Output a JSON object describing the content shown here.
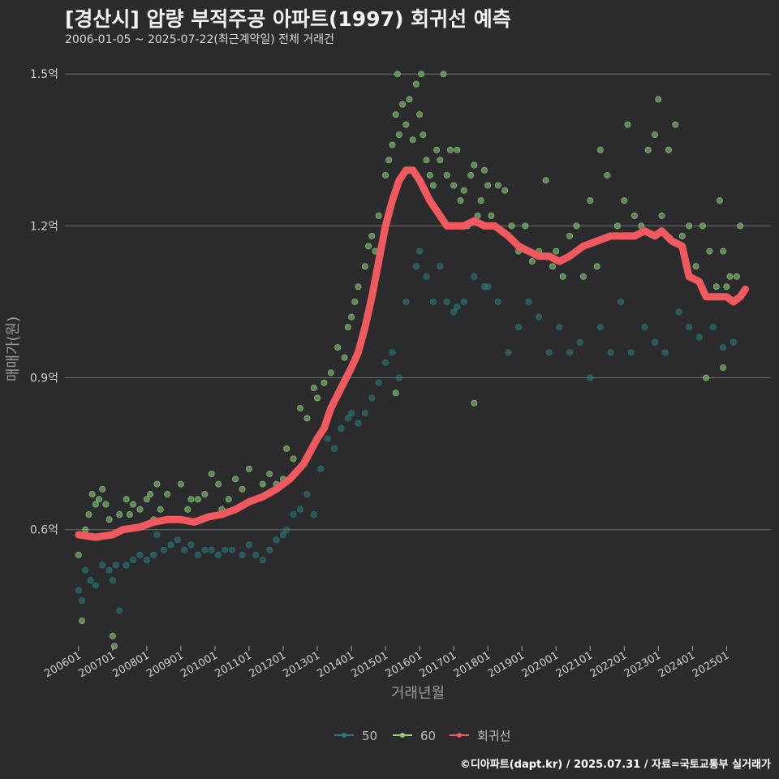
{
  "header": {
    "title": "[경산시] 압량 부적주공 아파트(1997) 회귀선 예측",
    "subtitle": "2006-01-05 ~ 2025-07-22(최근계약일) 전체 거래건"
  },
  "footer": {
    "credit": "©디아파트(dapt.kr) / 2025.07.31 / 자료=국토교통부 실거래가"
  },
  "colors": {
    "background": "#2b2b2e",
    "series_50": "#2a7d80",
    "series_60": "#8ed17a",
    "regression": "#f05a5f",
    "grid": "#6e6e6e"
  },
  "chart_data": {
    "type": "scatter",
    "title": "[경산시] 압량 부적주공 아파트(1997) 회귀선 예측",
    "xlabel": "거래년월",
    "ylabel": "매매가(원)",
    "ylim": [
      0.38,
      1.55
    ],
    "xlim": [
      2005.6,
      2026.3
    ],
    "y_ticks": [
      0.6,
      0.9,
      1.2,
      1.5
    ],
    "y_tick_labels": [
      "0.6억",
      "0.9억",
      "1.2억",
      "1.5억"
    ],
    "x_ticks": [
      2006,
      2007,
      2008,
      2009,
      2010,
      2011,
      2012,
      2013,
      2014,
      2015,
      2016,
      2017,
      2018,
      2019,
      2020,
      2021,
      2022,
      2023,
      2024,
      2025
    ],
    "x_tick_labels": [
      "200601",
      "200701",
      "200801",
      "200901",
      "201001",
      "201101",
      "201201",
      "201301",
      "201401",
      "201501",
      "201601",
      "201701",
      "201801",
      "201901",
      "202001",
      "202101",
      "202201",
      "202301",
      "202401",
      "202501"
    ],
    "legend": [
      "50",
      "60",
      "회귀선"
    ],
    "series": [
      {
        "name": "50",
        "points": [
          [
            2006.0,
            0.48
          ],
          [
            2006.1,
            0.46
          ],
          [
            2006.2,
            0.52
          ],
          [
            2006.35,
            0.5
          ],
          [
            2006.5,
            0.49
          ],
          [
            2006.7,
            0.53
          ],
          [
            2006.9,
            0.52
          ],
          [
            2007.0,
            0.5
          ],
          [
            2007.1,
            0.53
          ],
          [
            2007.2,
            0.44
          ],
          [
            2007.4,
            0.53
          ],
          [
            2007.6,
            0.54
          ],
          [
            2007.8,
            0.55
          ],
          [
            2008.0,
            0.54
          ],
          [
            2008.2,
            0.55
          ],
          [
            2008.3,
            0.59
          ],
          [
            2008.5,
            0.56
          ],
          [
            2008.7,
            0.57
          ],
          [
            2008.9,
            0.58
          ],
          [
            2009.1,
            0.56
          ],
          [
            2009.3,
            0.57
          ],
          [
            2009.5,
            0.55
          ],
          [
            2009.7,
            0.56
          ],
          [
            2009.9,
            0.56
          ],
          [
            2010.1,
            0.55
          ],
          [
            2010.3,
            0.56
          ],
          [
            2010.5,
            0.56
          ],
          [
            2010.8,
            0.55
          ],
          [
            2011.0,
            0.57
          ],
          [
            2011.2,
            0.55
          ],
          [
            2011.4,
            0.54
          ],
          [
            2011.6,
            0.56
          ],
          [
            2011.8,
            0.58
          ],
          [
            2012.0,
            0.59
          ],
          [
            2012.1,
            0.6
          ],
          [
            2012.3,
            0.63
          ],
          [
            2012.5,
            0.64
          ],
          [
            2012.7,
            0.67
          ],
          [
            2012.9,
            0.63
          ],
          [
            2013.1,
            0.72
          ],
          [
            2013.3,
            0.78
          ],
          [
            2013.5,
            0.76
          ],
          [
            2013.7,
            0.8
          ],
          [
            2013.9,
            0.82
          ],
          [
            2014.0,
            0.83
          ],
          [
            2014.2,
            0.81
          ],
          [
            2014.4,
            0.83
          ],
          [
            2014.6,
            0.86
          ],
          [
            2014.8,
            0.89
          ],
          [
            2015.0,
            0.93
          ],
          [
            2015.2,
            0.95
          ],
          [
            2015.4,
            0.9
          ],
          [
            2015.6,
            1.05
          ],
          [
            2015.9,
            1.12
          ],
          [
            2016.0,
            1.15
          ],
          [
            2016.2,
            1.1
          ],
          [
            2016.4,
            1.05
          ],
          [
            2016.6,
            1.12
          ],
          [
            2016.8,
            1.05
          ],
          [
            2017.0,
            1.03
          ],
          [
            2017.1,
            1.04
          ],
          [
            2017.3,
            1.05
          ],
          [
            2017.6,
            1.1
          ],
          [
            2017.9,
            1.08
          ],
          [
            2018.0,
            1.08
          ],
          [
            2018.3,
            1.05
          ],
          [
            2018.6,
            0.95
          ],
          [
            2018.9,
            1.0
          ],
          [
            2019.2,
            1.05
          ],
          [
            2019.5,
            1.02
          ],
          [
            2019.8,
            0.95
          ],
          [
            2020.1,
            1.0
          ],
          [
            2020.4,
            0.95
          ],
          [
            2020.7,
            0.97
          ],
          [
            2021.0,
            0.9
          ],
          [
            2021.3,
            1.0
          ],
          [
            2021.6,
            0.95
          ],
          [
            2021.9,
            1.05
          ],
          [
            2022.2,
            0.95
          ],
          [
            2022.6,
            1.0
          ],
          [
            2022.9,
            0.97
          ],
          [
            2023.2,
            0.95
          ],
          [
            2023.6,
            1.03
          ],
          [
            2023.9,
            1.0
          ],
          [
            2024.2,
            0.98
          ],
          [
            2024.6,
            1.0
          ],
          [
            2024.9,
            0.96
          ],
          [
            2025.2,
            0.97
          ]
        ]
      },
      {
        "name": "60",
        "points": [
          [
            2006.0,
            0.55
          ],
          [
            2006.1,
            0.42
          ],
          [
            2006.2,
            0.6
          ],
          [
            2006.3,
            0.63
          ],
          [
            2006.4,
            0.67
          ],
          [
            2006.5,
            0.65
          ],
          [
            2006.6,
            0.66
          ],
          [
            2006.7,
            0.68
          ],
          [
            2006.8,
            0.65
          ],
          [
            2006.9,
            0.62
          ],
          [
            2007.0,
            0.39
          ],
          [
            2007.05,
            0.37
          ],
          [
            2007.2,
            0.63
          ],
          [
            2007.4,
            0.66
          ],
          [
            2007.5,
            0.63
          ],
          [
            2007.6,
            0.65
          ],
          [
            2007.8,
            0.64
          ],
          [
            2008.0,
            0.66
          ],
          [
            2008.1,
            0.67
          ],
          [
            2008.2,
            0.62
          ],
          [
            2008.3,
            0.69
          ],
          [
            2008.4,
            0.64
          ],
          [
            2008.6,
            0.67
          ],
          [
            2008.8,
            0.62
          ],
          [
            2009.0,
            0.69
          ],
          [
            2009.2,
            0.64
          ],
          [
            2009.3,
            0.66
          ],
          [
            2009.5,
            0.66
          ],
          [
            2009.7,
            0.67
          ],
          [
            2009.9,
            0.71
          ],
          [
            2010.1,
            0.69
          ],
          [
            2010.2,
            0.64
          ],
          [
            2010.4,
            0.66
          ],
          [
            2010.6,
            0.7
          ],
          [
            2010.8,
            0.68
          ],
          [
            2011.0,
            0.72
          ],
          [
            2011.2,
            0.66
          ],
          [
            2011.4,
            0.69
          ],
          [
            2011.6,
            0.71
          ],
          [
            2011.8,
            0.69
          ],
          [
            2012.0,
            0.7
          ],
          [
            2012.1,
            0.76
          ],
          [
            2012.3,
            0.74
          ],
          [
            2012.5,
            0.84
          ],
          [
            2012.7,
            0.82
          ],
          [
            2012.9,
            0.88
          ],
          [
            2013.0,
            0.86
          ],
          [
            2013.2,
            0.89
          ],
          [
            2013.4,
            0.91
          ],
          [
            2013.6,
            0.96
          ],
          [
            2013.8,
            0.94
          ],
          [
            2013.9,
            1.0
          ],
          [
            2014.0,
            1.02
          ],
          [
            2014.1,
            1.05
          ],
          [
            2014.2,
            1.08
          ],
          [
            2014.4,
            1.12
          ],
          [
            2014.5,
            1.16
          ],
          [
            2014.6,
            1.18
          ],
          [
            2014.7,
            1.15
          ],
          [
            2014.8,
            1.22
          ],
          [
            2015.0,
            1.3
          ],
          [
            2015.1,
            1.33
          ],
          [
            2015.2,
            1.36
          ],
          [
            2015.3,
            1.42
          ],
          [
            2015.35,
            1.5
          ],
          [
            2015.4,
            1.38
          ],
          [
            2015.5,
            1.44
          ],
          [
            2015.6,
            1.4
          ],
          [
            2015.7,
            1.45
          ],
          [
            2015.8,
            1.37
          ],
          [
            2015.9,
            1.48
          ],
          [
            2016.0,
            1.42
          ],
          [
            2016.05,
            1.5
          ],
          [
            2016.1,
            1.38
          ],
          [
            2016.2,
            1.33
          ],
          [
            2016.3,
            1.3
          ],
          [
            2016.4,
            1.28
          ],
          [
            2016.5,
            1.35
          ],
          [
            2016.6,
            1.33
          ],
          [
            2016.7,
            1.5
          ],
          [
            2016.8,
            1.3
          ],
          [
            2016.9,
            1.35
          ],
          [
            2017.0,
            1.28
          ],
          [
            2017.1,
            1.35
          ],
          [
            2017.2,
            1.25
          ],
          [
            2017.3,
            1.27
          ],
          [
            2017.4,
            1.2
          ],
          [
            2017.5,
            1.3
          ],
          [
            2017.6,
            1.32
          ],
          [
            2017.7,
            1.22
          ],
          [
            2017.8,
            1.25
          ],
          [
            2017.9,
            1.31
          ],
          [
            2018.0,
            1.28
          ],
          [
            2018.1,
            1.22
          ],
          [
            2018.3,
            1.28
          ],
          [
            2018.5,
            1.27
          ],
          [
            2018.7,
            1.2
          ],
          [
            2018.9,
            1.15
          ],
          [
            2019.1,
            1.2
          ],
          [
            2019.3,
            1.13
          ],
          [
            2019.5,
            1.15
          ],
          [
            2019.7,
            1.29
          ],
          [
            2019.9,
            1.12
          ],
          [
            2020.0,
            1.15
          ],
          [
            2020.2,
            1.1
          ],
          [
            2020.4,
            1.18
          ],
          [
            2020.6,
            1.2
          ],
          [
            2020.8,
            1.1
          ],
          [
            2021.0,
            1.25
          ],
          [
            2021.2,
            1.12
          ],
          [
            2021.3,
            1.35
          ],
          [
            2021.5,
            1.3
          ],
          [
            2021.6,
            1.18
          ],
          [
            2021.8,
            1.2
          ],
          [
            2022.0,
            1.25
          ],
          [
            2022.1,
            1.4
          ],
          [
            2022.3,
            1.22
          ],
          [
            2022.5,
            1.2
          ],
          [
            2022.7,
            1.35
          ],
          [
            2022.9,
            1.38
          ],
          [
            2023.0,
            1.45
          ],
          [
            2023.1,
            1.22
          ],
          [
            2023.3,
            1.35
          ],
          [
            2023.5,
            1.4
          ],
          [
            2023.7,
            1.18
          ],
          [
            2023.9,
            1.2
          ],
          [
            2024.1,
            1.12
          ],
          [
            2024.3,
            1.2
          ],
          [
            2024.5,
            1.15
          ],
          [
            2024.7,
            1.08
          ],
          [
            2024.8,
            1.25
          ],
          [
            2024.9,
            1.15
          ],
          [
            2025.0,
            1.08
          ],
          [
            2025.1,
            1.1
          ],
          [
            2025.3,
            1.1
          ],
          [
            2025.4,
            1.2
          ],
          [
            2024.4,
            0.9
          ],
          [
            2024.9,
            0.92
          ],
          [
            2017.6,
            0.85
          ],
          [
            2015.3,
            0.87
          ]
        ]
      }
    ],
    "regression": {
      "name": "회귀선",
      "points": [
        [
          2006.0,
          0.59
        ],
        [
          2006.5,
          0.585
        ],
        [
          2007.0,
          0.59
        ],
        [
          2007.3,
          0.6
        ],
        [
          2007.8,
          0.605
        ],
        [
          2008.2,
          0.615
        ],
        [
          2008.6,
          0.62
        ],
        [
          2009.0,
          0.62
        ],
        [
          2009.4,
          0.615
        ],
        [
          2009.8,
          0.625
        ],
        [
          2010.2,
          0.63
        ],
        [
          2010.6,
          0.64
        ],
        [
          2011.0,
          0.655
        ],
        [
          2011.4,
          0.665
        ],
        [
          2011.8,
          0.68
        ],
        [
          2012.2,
          0.7
        ],
        [
          2012.6,
          0.73
        ],
        [
          2013.0,
          0.78
        ],
        [
          2013.2,
          0.8
        ],
        [
          2013.4,
          0.84
        ],
        [
          2013.7,
          0.88
        ],
        [
          2014.0,
          0.92
        ],
        [
          2014.2,
          0.95
        ],
        [
          2014.4,
          1.0
        ],
        [
          2014.6,
          1.06
        ],
        [
          2014.8,
          1.13
        ],
        [
          2015.0,
          1.2
        ],
        [
          2015.2,
          1.25
        ],
        [
          2015.4,
          1.29
        ],
        [
          2015.6,
          1.31
        ],
        [
          2015.8,
          1.31
        ],
        [
          2016.0,
          1.29
        ],
        [
          2016.3,
          1.25
        ],
        [
          2016.6,
          1.22
        ],
        [
          2016.8,
          1.2
        ],
        [
          2017.0,
          1.2
        ],
        [
          2017.3,
          1.2
        ],
        [
          2017.6,
          1.21
        ],
        [
          2017.9,
          1.2
        ],
        [
          2018.2,
          1.2
        ],
        [
          2018.6,
          1.18
        ],
        [
          2018.9,
          1.16
        ],
        [
          2019.2,
          1.15
        ],
        [
          2019.5,
          1.14
        ],
        [
          2019.8,
          1.14
        ],
        [
          2020.1,
          1.13
        ],
        [
          2020.4,
          1.14
        ],
        [
          2020.8,
          1.16
        ],
        [
          2021.2,
          1.17
        ],
        [
          2021.6,
          1.18
        ],
        [
          2022.0,
          1.18
        ],
        [
          2022.3,
          1.18
        ],
        [
          2022.6,
          1.19
        ],
        [
          2022.9,
          1.18
        ],
        [
          2023.1,
          1.19
        ],
        [
          2023.4,
          1.17
        ],
        [
          2023.7,
          1.16
        ],
        [
          2023.9,
          1.1
        ],
        [
          2024.2,
          1.09
        ],
        [
          2024.4,
          1.06
        ],
        [
          2024.7,
          1.06
        ],
        [
          2025.0,
          1.06
        ],
        [
          2025.2,
          1.05
        ],
        [
          2025.4,
          1.06
        ],
        [
          2025.55,
          1.075
        ]
      ]
    }
  }
}
